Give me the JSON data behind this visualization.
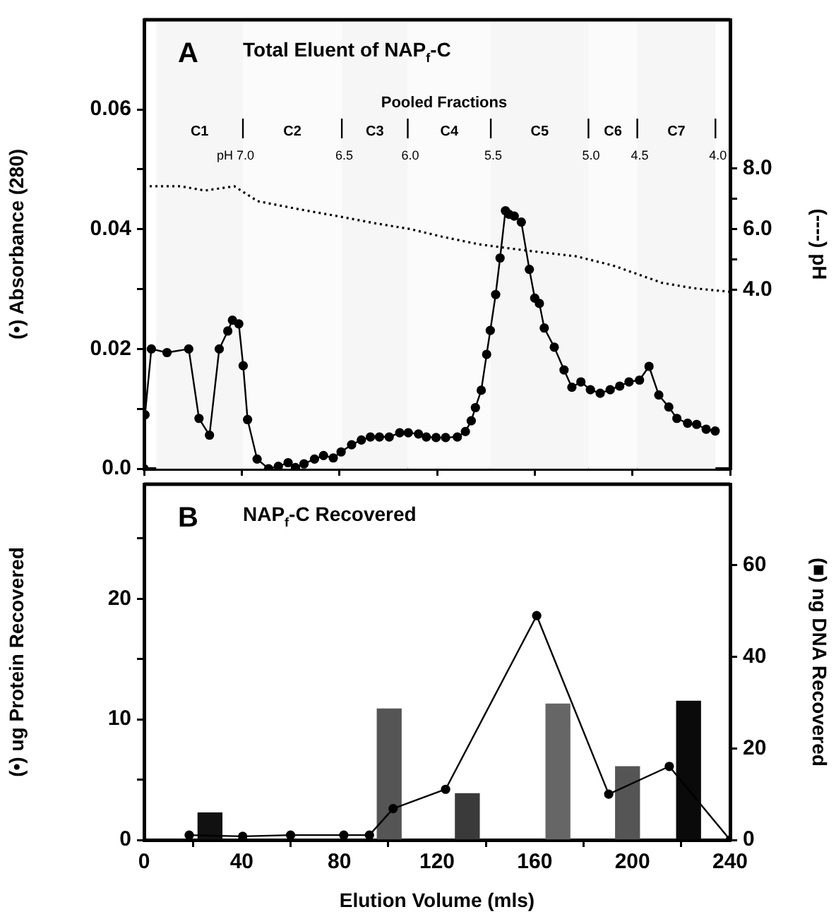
{
  "chart_data": [
    {
      "type": "line",
      "title": "Total Eluent of NAP$_{f}$-C",
      "ylabel": "(•) Absorbance (280)",
      "y2label": "(----) pH",
      "annotations": [
        "A",
        "Pooled Fractions",
        {
          "text": "pH 7.0",
          "x": 40.5
        },
        {
          "text": "6.5",
          "x": 81
        },
        {
          "text": "6.0",
          "x": 108
        },
        {
          "text": "5.5",
          "x": 142
        },
        {
          "text": "5.0",
          "x": 182
        },
        {
          "text": "4.5",
          "x": 202
        },
        {
          "text": "4.0",
          "x": 234
        }
      ],
      "bands": [
        {
          "axis": "x",
          "from": 5,
          "to": 40.5,
          "label": "C1",
          "color": "#f6f6f6"
        },
        {
          "axis": "x",
          "from": 40.5,
          "to": 81,
          "label": "C2",
          "color": "#fbfbfb"
        },
        {
          "axis": "x",
          "from": 81,
          "to": 108,
          "label": "C3",
          "color": "#f6f6f6"
        },
        {
          "axis": "x",
          "from": 108,
          "to": 142,
          "label": "C4",
          "color": "#fbfbfb"
        },
        {
          "axis": "x",
          "from": 142,
          "to": 182,
          "label": "C5",
          "color": "#f6f6f6"
        },
        {
          "axis": "x",
          "from": 182,
          "to": 202,
          "label": "C6",
          "color": "#fbfbfb"
        },
        {
          "axis": "x",
          "from": 202,
          "to": 234,
          "label": "C7",
          "color": "#f6f6f6"
        }
      ],
      "xlim": [
        0,
        240
      ],
      "xticks": [
        {
          "value": 0,
          "label": null
        },
        {
          "value": 40,
          "label": null
        },
        {
          "value": 80,
          "label": null
        },
        {
          "value": 120,
          "label": null
        },
        {
          "value": 160,
          "label": null
        },
        {
          "value": 200,
          "label": null
        },
        {
          "value": 240,
          "label": null
        }
      ],
      "ylim": [
        0,
        0.075
      ],
      "yticks": [
        {
          "value": 0,
          "label": "0.0"
        },
        {
          "value": 0.01,
          "label": null
        },
        0.02,
        {
          "value": 0.03,
          "label": null
        },
        0.04,
        {
          "value": 0.05,
          "label": null
        },
        0.06
      ],
      "y2lim": [
        -1.9,
        12.9
      ],
      "y2ticks": [
        {
          "value": 4,
          "label": "4.0"
        },
        {
          "value": 5,
          "label": null
        },
        {
          "value": 6,
          "label": "6.0"
        },
        {
          "value": 7,
          "label": null
        },
        {
          "value": 8,
          "label": "8.0"
        }
      ],
      "tick_labels": "y",
      "grid": false,
      "legend": false,
      "series": [
        {
          "type": "line",
          "color": "#000000",
          "marker": "circle",
          "line_style": "solid",
          "x": [
            0,
            0.4,
            3,
            9.4,
            18.3,
            22.5,
            26.8,
            30.8,
            34.3,
            36.2,
            38.8,
            40.6,
            42.4,
            46.3,
            51,
            55,
            59,
            62,
            65.5,
            69.8,
            73.5,
            77.5,
            80.7,
            85,
            89,
            92.7,
            96.4,
            100.4,
            104.7,
            108.2,
            112.4,
            115.6,
            119.6,
            123.5,
            128.3,
            131.6,
            134,
            135.7,
            138.1,
            140.3,
            141.8,
            144,
            145.8,
            148,
            149.5,
            151.6,
            154.5,
            157.8,
            160,
            161.9,
            163.9,
            168,
            172,
            175.2,
            178.9,
            182.8,
            186.8,
            190.9,
            194.8,
            198.6,
            202.9,
            206.8,
            210.8,
            214.9,
            218.2,
            222.6,
            226.3,
            230.2,
            233.9
          ],
          "values": [
            0,
            0.009,
            0.02,
            0.0194,
            0.02,
            0.0084,
            0.0056,
            0.02,
            0.023,
            0.0248,
            0.0242,
            0.0172,
            0.0082,
            0.0016,
            0,
            0.0004,
            0.001,
            0.0002,
            0.0008,
            0.0016,
            0.0022,
            0.0018,
            0.0028,
            0.004,
            0.0048,
            0.0053,
            0.0053,
            0.0053,
            0.006,
            0.006,
            0.0058,
            0.0053,
            0.0052,
            0.0052,
            0.0053,
            0.0062,
            0.008,
            0.0102,
            0.0131,
            0.0191,
            0.0231,
            0.0291,
            0.0352,
            0.0431,
            0.0425,
            0.0422,
            0.0412,
            0.0333,
            0.0285,
            0.0276,
            0.0235,
            0.0203,
            0.0165,
            0.0136,
            0.0145,
            0.0132,
            0.0126,
            0.0132,
            0.0138,
            0.0145,
            0.0148,
            0.0171,
            0.0123,
            0.0103,
            0.0084,
            0.0076,
            0.0074,
            0.0066,
            0.0063
          ]
        },
        {
          "type": "line",
          "axis": "y2",
          "color": "#000000",
          "marker": "none",
          "line_style": "dotted",
          "x": [
            0,
            15,
            24.9,
            37,
            46.5,
            63,
            81,
            94,
            109,
            122,
            137,
            148,
            159,
            177,
            192,
            212,
            225,
            240
          ],
          "values": [
            7.41,
            7.41,
            7.27,
            7.41,
            6.92,
            6.66,
            6.4,
            6.2,
            6.0,
            5.75,
            5.5,
            5.38,
            5.27,
            5.1,
            4.8,
            4.23,
            4.05,
            3.93
          ]
        }
      ]
    },
    {
      "type": "line",
      "title": "NAP$_{f}$-C Recovered",
      "xlabel": "Elution Volume (mls)",
      "ylabel": "(•) ug Protein Recovered",
      "y2label": "(■) ng DNA Recovered",
      "annotations": [
        "B"
      ],
      "xlim": [
        0,
        240
      ],
      "xticks": [
        0,
        40,
        80,
        120,
        160,
        200,
        240
      ],
      "ylim": [
        0,
        29.5
      ],
      "yticks": [
        0,
        {
          "value": 5,
          "label": null
        },
        10,
        {
          "value": 15,
          "label": null
        },
        20,
        {
          "value": 25,
          "label": null
        }
      ],
      "y2lim": [
        0,
        77.7
      ],
      "y2ticks": [
        0,
        20,
        40,
        60
      ],
      "grid": false,
      "legend": false,
      "series": [
        {
          "type": "bar",
          "axis": "y2",
          "x": [
            27,
            100.4,
            132.4,
            169.5,
            198,
            223
          ],
          "values": [
            5.9,
            28.6,
            10.1,
            29.7,
            16,
            30.3
          ],
          "colors": [
            "#111111",
            "#555555",
            "#3a3a3a",
            "#666666",
            "#555555",
            "#0a0a0a"
          ]
        },
        {
          "type": "line",
          "color": "#000000",
          "marker": "circle",
          "line_style": "solid",
          "x": [
            18.5,
            40.4,
            60,
            81.8,
            92.3,
            102,
            123.5,
            160.8,
            190.3,
            215.1,
            240
          ],
          "values": [
            0.4,
            0.3,
            0.4,
            0.4,
            0.4,
            2.6,
            4.2,
            18.6,
            3.8,
            6.1,
            0
          ]
        }
      ]
    }
  ]
}
